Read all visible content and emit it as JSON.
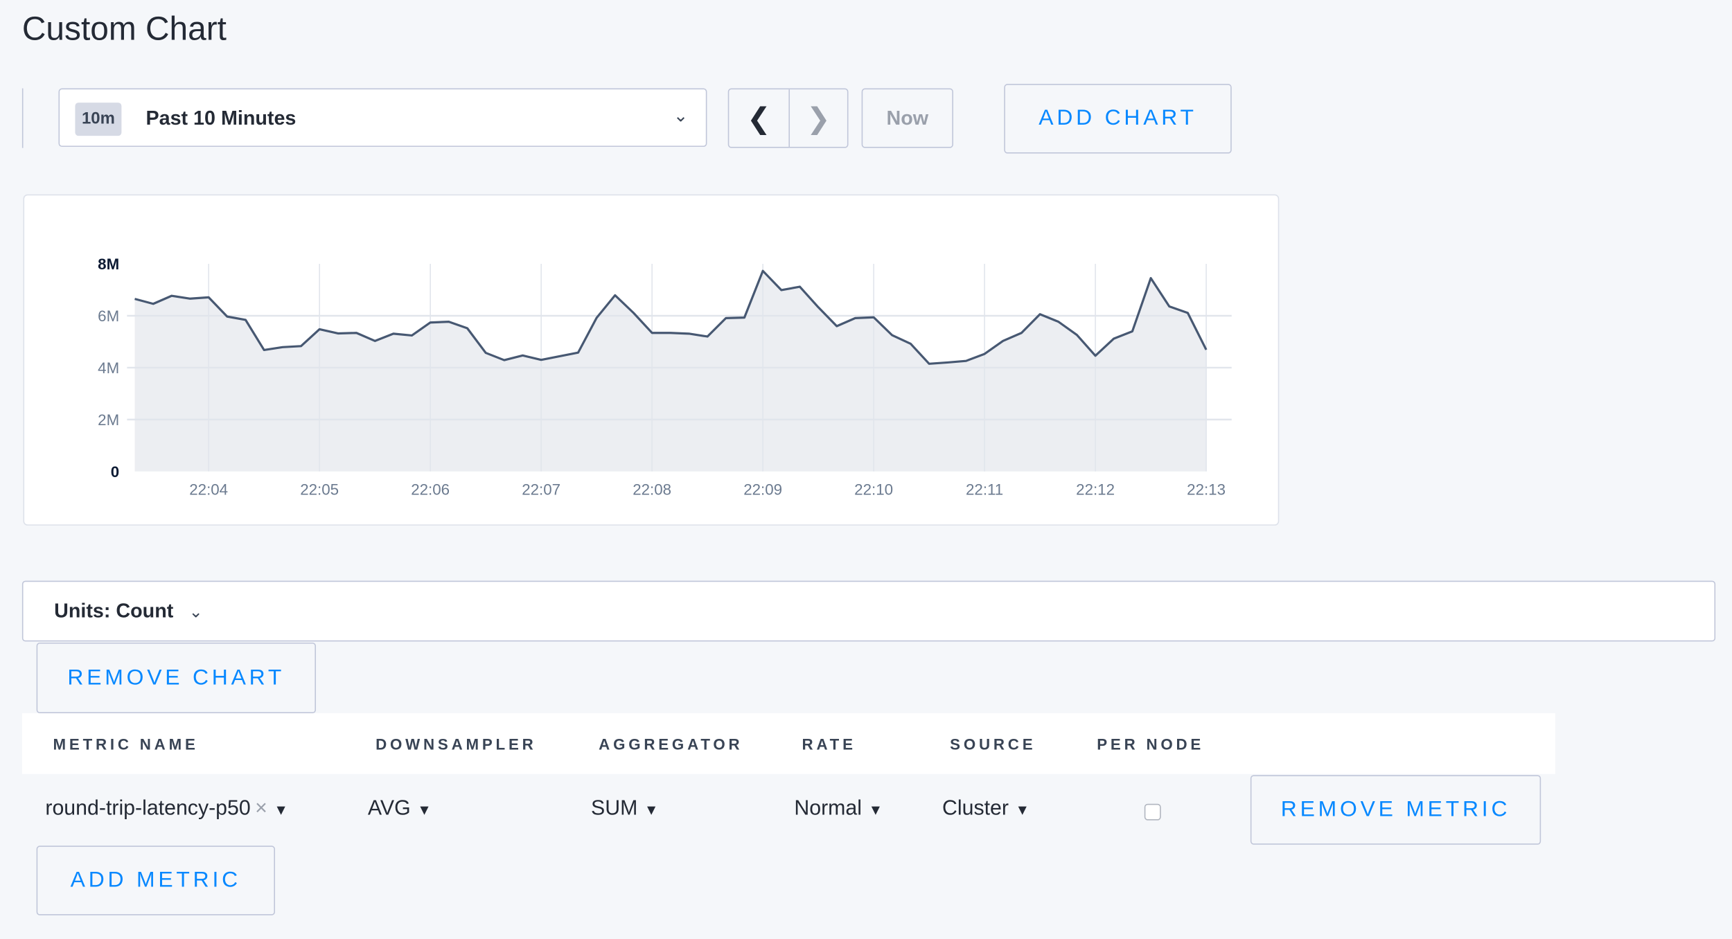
{
  "page": {
    "title": "Custom Chart"
  },
  "time_selector": {
    "badge": "10m",
    "label": "Past 10 Minutes",
    "chevron_icon": "chevron-down-icon"
  },
  "pager": {
    "prev_icon": "chevron-left-icon",
    "next_icon": "chevron-right-icon",
    "now_label": "Now"
  },
  "toolbar": {
    "add_chart_label": "ADD CHART"
  },
  "units": {
    "label": "Units: Count"
  },
  "chart_actions": {
    "remove_chart_label": "REMOVE CHART"
  },
  "metrics_table": {
    "headers": [
      "METRIC NAME",
      "DOWNSAMPLER",
      "AGGREGATOR",
      "RATE",
      "SOURCE",
      "PER NODE"
    ],
    "rows": [
      {
        "metric_name": "round-trip-latency-p50",
        "downsampler": "AVG",
        "aggregator": "SUM",
        "rate": "Normal",
        "source": "Cluster",
        "per_node": false,
        "remove_label": "REMOVE METRIC"
      }
    ],
    "add_metric_label": "ADD METRIC"
  },
  "colors": {
    "accent": "#0788ff",
    "line": "#475872",
    "area": "#eceef2",
    "grid": "#e1e5ec"
  },
  "chart_data": {
    "type": "area",
    "x_ticks": [
      "22:04",
      "22:05",
      "22:06",
      "22:07",
      "22:08",
      "22:09",
      "22:10",
      "22:11",
      "22:12",
      "22:13"
    ],
    "y_ticks": [
      "0",
      "2M",
      "4M",
      "6M",
      "8M"
    ],
    "ylim": [
      0,
      8000000
    ],
    "xlim": [
      "22:03:20",
      "22:13:00"
    ],
    "grid": true,
    "x": [
      "22:03:20",
      "22:03:30",
      "22:03:40",
      "22:03:50",
      "22:04:00",
      "22:04:10",
      "22:04:20",
      "22:04:30",
      "22:04:40",
      "22:04:50",
      "22:05:00",
      "22:05:10",
      "22:05:20",
      "22:05:30",
      "22:05:40",
      "22:05:50",
      "22:06:00",
      "22:06:10",
      "22:06:20",
      "22:06:30",
      "22:06:40",
      "22:06:50",
      "22:07:00",
      "22:07:10",
      "22:07:20",
      "22:07:30",
      "22:07:40",
      "22:07:50",
      "22:08:00",
      "22:08:10",
      "22:08:20",
      "22:08:30",
      "22:08:40",
      "22:08:50",
      "22:09:00",
      "22:09:10",
      "22:09:20",
      "22:09:30",
      "22:09:40",
      "22:09:50",
      "22:10:00",
      "22:10:10",
      "22:10:20",
      "22:10:30",
      "22:10:40",
      "22:10:50",
      "22:11:00",
      "22:11:10",
      "22:11:20",
      "22:11:30",
      "22:11:40",
      "22:11:50",
      "22:12:00",
      "22:12:10",
      "22:12:20",
      "22:12:30",
      "22:12:40",
      "22:12:50",
      "22:13:00"
    ],
    "values": [
      6650000,
      6460000,
      6770000,
      6660000,
      6710000,
      5970000,
      5840000,
      4680000,
      4790000,
      4830000,
      5480000,
      5320000,
      5340000,
      5030000,
      5310000,
      5240000,
      5740000,
      5770000,
      5520000,
      4570000,
      4290000,
      4470000,
      4300000,
      4440000,
      4580000,
      5920000,
      6790000,
      6110000,
      5340000,
      5340000,
      5310000,
      5200000,
      5910000,
      5930000,
      7730000,
      6990000,
      7120000,
      6330000,
      5600000,
      5910000,
      5940000,
      5250000,
      4920000,
      4150000,
      4200000,
      4260000,
      4530000,
      5030000,
      5340000,
      6060000,
      5770000,
      5260000,
      4460000,
      5120000,
      5400000,
      7450000,
      6360000,
      6110000,
      4690000
    ]
  }
}
